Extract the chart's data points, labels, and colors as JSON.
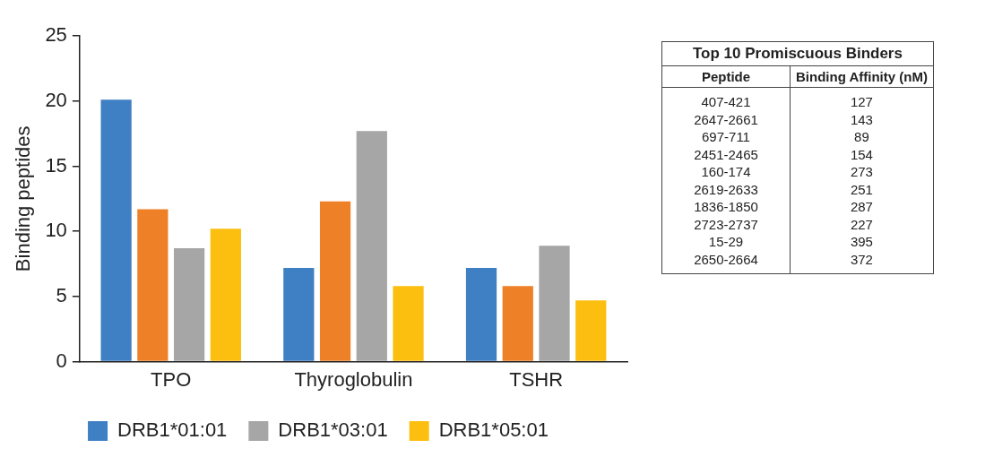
{
  "chart_data": [
    {
      "type": "bar",
      "ylabel": "Binding peptides",
      "categories": [
        "TPO",
        "Thyroglobulin",
        "TSHR"
      ],
      "series": [
        {
          "name": "DRB1*01:01",
          "color": "#3f7fc3",
          "values": [
            20.1,
            7.2,
            7.2
          ]
        },
        {
          "color": "#ee8027",
          "values": [
            11.7,
            12.3,
            5.8
          ]
        },
        {
          "name": "DRB1*03:01",
          "color": "#a6a6a6",
          "values": [
            8.7,
            17.7,
            8.9
          ]
        },
        {
          "name": "DRB1*05:01",
          "color": "#fcbf10",
          "values": [
            10.2,
            5.8,
            4.7
          ]
        }
      ],
      "ylim": [
        0,
        25
      ],
      "yticks": [
        0,
        5,
        10,
        15,
        20,
        25
      ],
      "grid": false,
      "legend": "bottom"
    },
    {
      "type": "other",
      "title": "Top 10 Promiscuous Binders",
      "xlabel": "Peptide",
      "ylabel": "Binding Affinity (nM)",
      "categories": [
        "407-421",
        "2647-2661",
        "697-711",
        "2451-2465",
        "160-174",
        "2619-2633",
        "1836-1850",
        "2723-2737",
        "15-29",
        "2650-2664"
      ],
      "values": [
        127,
        143,
        89,
        154,
        273,
        251,
        287,
        227,
        395,
        372
      ],
      "data_labels": true
    }
  ]
}
